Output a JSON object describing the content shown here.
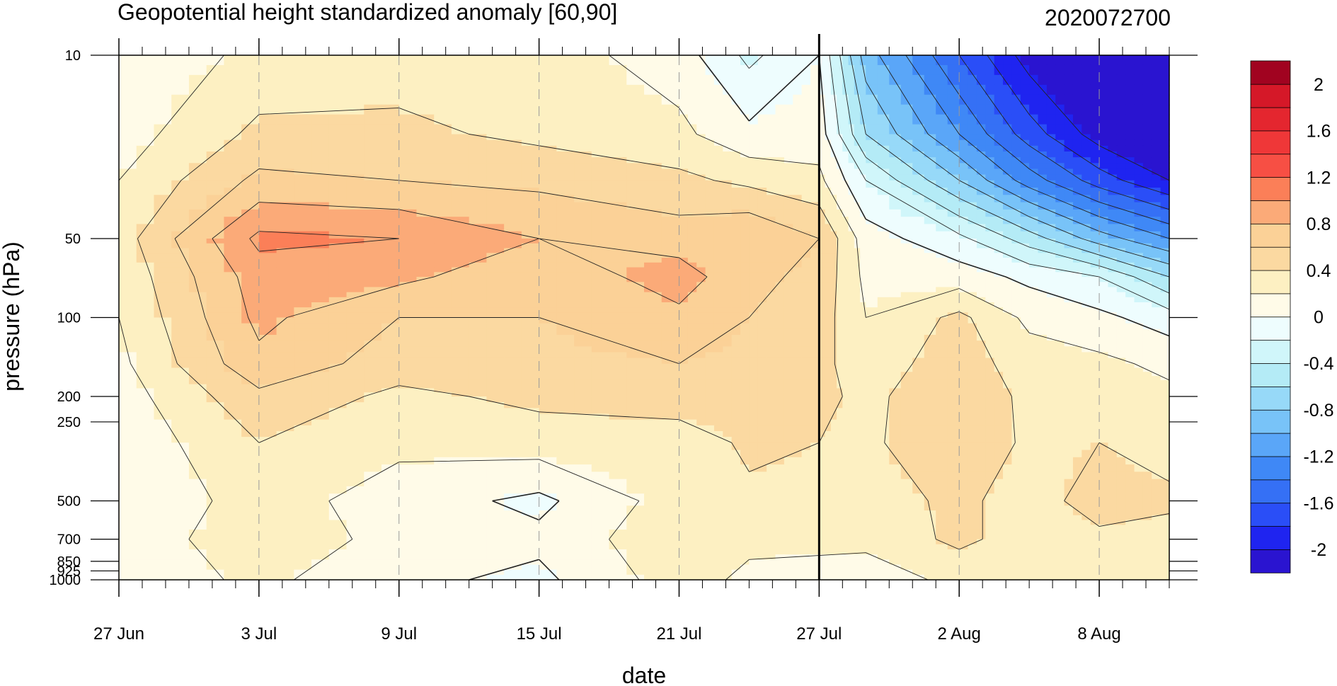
{
  "chart_data": {
    "type": "heatmap",
    "title": "Geopotential height standardized anomaly [60,90]",
    "subtitle": "2020072700",
    "xlabel": "date",
    "ylabel": "pressure (hPa)",
    "x_start": "2020-06-27",
    "x_end": "2020-08-11",
    "x_ticks": [
      {
        "label": "27 Jun",
        "value": "2020-06-27"
      },
      {
        "label": "3 Jul",
        "value": "2020-07-03"
      },
      {
        "label": "9 Jul",
        "value": "2020-07-09"
      },
      {
        "label": "15 Jul",
        "value": "2020-07-15"
      },
      {
        "label": "21 Jul",
        "value": "2020-07-21"
      },
      {
        "label": "27 Jul",
        "value": "2020-07-27"
      },
      {
        "label": "2 Aug",
        "value": "2020-08-02"
      },
      {
        "label": "8 Aug",
        "value": "2020-08-08"
      }
    ],
    "y_scale": "log",
    "y_inverted": true,
    "y_range": [
      1000,
      10
    ],
    "y_ticks": [
      {
        "label": "10",
        "value": 10
      },
      {
        "label": "50",
        "value": 50
      },
      {
        "label": "100",
        "value": 100
      },
      {
        "label": "200",
        "value": 200
      },
      {
        "label": "250",
        "value": 250
      },
      {
        "label": "500",
        "value": 500
      },
      {
        "label": "700",
        "value": 700
      },
      {
        "label": "850",
        "value": 850
      },
      {
        "label": "925",
        "value": 925
      },
      {
        "label": "1000",
        "value": 1000
      }
    ],
    "marker_line": {
      "date": "2020-07-27"
    },
    "gridlines": "dashed vertical at labeled dates",
    "colorbar": {
      "placement": "right",
      "levels": [
        -2.2,
        -2.0,
        -1.8,
        -1.6,
        -1.4,
        -1.2,
        -1.0,
        -0.8,
        -0.6,
        -0.4,
        -0.2,
        0,
        0.2,
        0.4,
        0.6,
        0.8,
        1.0,
        1.2,
        1.4,
        1.6,
        1.8,
        2.0,
        2.2
      ],
      "colors": [
        "#2a14d0",
        "#1f24f0",
        "#2a4ef7",
        "#3570f5",
        "#3f88f6",
        "#5aa6f8",
        "#78c3f8",
        "#97d9f8",
        "#b4ebf6",
        "#d0f6fa",
        "#eefdfe",
        "#fffbe8",
        "#fdf0c2",
        "#fbd9a1",
        "#fbd197",
        "#fbaa78",
        "#fb7f58",
        "#f74f44",
        "#ef3738",
        "#e4262f",
        "#d51828",
        "#a10320"
      ],
      "labels": [
        {
          "label": "2",
          "value": 2.0
        },
        {
          "label": "1.6",
          "value": 1.6
        },
        {
          "label": "1.2",
          "value": 1.2
        },
        {
          "label": "0.8",
          "value": 0.8
        },
        {
          "label": "0.4",
          "value": 0.4
        },
        {
          "label": "0",
          "value": 0
        },
        {
          "label": "-0.4",
          "value": -0.4
        },
        {
          "label": "-0.8",
          "value": -0.8
        },
        {
          "label": "-1.2",
          "value": -1.2
        },
        {
          "label": "-1.6",
          "value": -1.6
        },
        {
          "label": "-2",
          "value": -2.0
        }
      ]
    },
    "fields": {
      "dates": [
        "2020-06-27",
        "2020-07-03",
        "2020-07-09",
        "2020-07-15",
        "2020-07-21",
        "2020-07-24",
        "2020-07-27",
        "2020-07-29",
        "2020-08-02",
        "2020-08-05",
        "2020-08-08",
        "2020-08-11"
      ],
      "levels_hPa": [
        10,
        20,
        30,
        50,
        70,
        100,
        150,
        200,
        300,
        500,
        700,
        1000
      ],
      "values": [
        [
          0.05,
          0.25,
          0.3,
          0.3,
          0.1,
          -0.25,
          0.0,
          -0.9,
          -1.6,
          -2.1,
          -2.3,
          -2.5
        ],
        [
          0.1,
          0.45,
          0.45,
          0.35,
          0.25,
          0.05,
          0.1,
          -0.6,
          -1.2,
          -1.7,
          -2.1,
          -2.3
        ],
        [
          0.2,
          0.65,
          0.6,
          0.55,
          0.45,
          0.35,
          0.25,
          -0.2,
          -0.8,
          -1.3,
          -1.7,
          -2.0
        ],
        [
          0.3,
          1.05,
          1.0,
          0.8,
          0.7,
          0.8,
          0.6,
          0.1,
          -0.15,
          -0.5,
          -0.9,
          -1.2
        ],
        [
          0.25,
          0.9,
          0.85,
          0.65,
          0.9,
          0.65,
          0.55,
          0.15,
          0.1,
          -0.05,
          -0.2,
          -0.6
        ],
        [
          0.2,
          0.85,
          0.6,
          0.6,
          0.75,
          0.6,
          0.5,
          0.2,
          0.45,
          0.15,
          0.05,
          -0.1
        ],
        [
          0.15,
          0.75,
          0.5,
          0.55,
          0.6,
          0.55,
          0.45,
          0.3,
          0.5,
          0.3,
          0.25,
          0.15
        ],
        [
          0.1,
          0.55,
          0.35,
          0.45,
          0.55,
          0.5,
          0.45,
          0.35,
          0.55,
          0.35,
          0.3,
          0.25
        ],
        [
          0.05,
          0.4,
          0.25,
          0.3,
          0.25,
          0.45,
          0.4,
          0.35,
          0.6,
          0.35,
          0.4,
          0.3
        ],
        [
          0.0,
          0.3,
          0.1,
          -0.05,
          0.3,
          0.35,
          0.35,
          0.3,
          0.45,
          0.3,
          0.5,
          0.45
        ],
        [
          0.1,
          0.3,
          0.15,
          0.05,
          0.35,
          0.25,
          0.3,
          0.25,
          0.45,
          0.3,
          0.35,
          0.3
        ],
        [
          0.05,
          0.25,
          0.05,
          -0.05,
          0.3,
          0.15,
          0.05,
          0.1,
          0.25,
          0.3,
          0.25,
          0.25
        ]
      ]
    }
  }
}
